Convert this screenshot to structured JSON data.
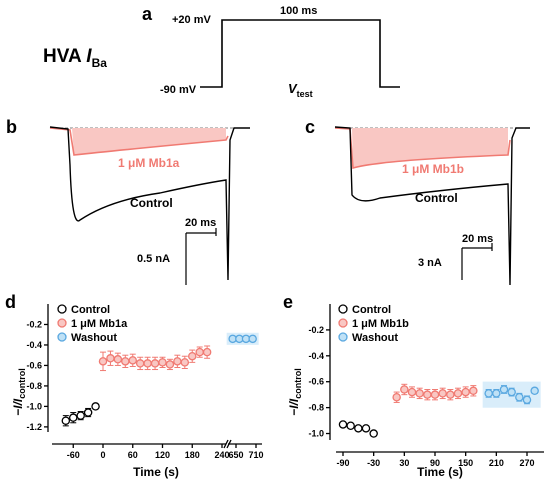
{
  "panels": {
    "a": "a",
    "b": "b",
    "c": "c",
    "d": "d",
    "e": "e"
  },
  "protocol": {
    "title_main": "HVA ",
    "title_I": "I",
    "title_sub": "Ba",
    "v_hold": "-90 mV",
    "v_step": "+20 mV",
    "duration": "100 ms",
    "vtest_V": "V",
    "vtest_sub": "test"
  },
  "traces_b": {
    "drug_label": "1 μM Mb1a",
    "control_label": "Control",
    "scale_time": "20 ms",
    "scale_current": "0.5 nA"
  },
  "traces_c": {
    "drug_label": "1 μM Mb1b",
    "control_label": "Control",
    "scale_time": "20 ms",
    "scale_current": "3 nA"
  },
  "colors": {
    "control": "#000000",
    "drug": "#f07a72",
    "drug_fill": "#f9c7c3",
    "washout": "#5aa8e0",
    "washout_fill": "#bfe1f6"
  },
  "legend_d": [
    "Control",
    "1 μM Mb1a",
    "Washout"
  ],
  "legend_e": [
    "Control",
    "1 μM Mb1b",
    "Washout"
  ],
  "ylabel_d": {
    "main": "−I/I",
    "sub": "control"
  },
  "ylabel_e": {
    "main": "−I/I",
    "sub": "control"
  },
  "xlabel_d": "Time (s)",
  "xlabel_e": "Time (s)",
  "chart_data": [
    {
      "type": "scatter",
      "panel": "d",
      "xlabel": "Time (s)",
      "ylabel": "−I/Icontrol",
      "ylim": [
        -1.25,
        0
      ],
      "y_ticks": [
        "-0.2",
        "-0.4",
        "-0.6",
        "-0.8",
        "-1.0",
        "-1.2"
      ],
      "x_ticks": [
        "-60",
        "0",
        "60",
        "120",
        "180",
        "240",
        "650",
        "710"
      ],
      "axis_break_after": 240,
      "grid": false,
      "legend": "top-left",
      "series": [
        {
          "name": "Control",
          "x": [
            -75,
            -60,
            -45,
            -30,
            -15
          ],
          "y": [
            -1.14,
            -1.11,
            -1.09,
            -1.06,
            -1.0
          ],
          "err": [
            0.05,
            0.05,
            0.04,
            0.04,
            0.0
          ]
        },
        {
          "name": "1 μM Mb1a",
          "x": [
            0,
            15,
            30,
            45,
            60,
            75,
            90,
            105,
            120,
            135,
            150,
            165,
            180,
            195,
            210
          ],
          "y": [
            -0.56,
            -0.53,
            -0.54,
            -0.56,
            -0.55,
            -0.58,
            -0.58,
            -0.58,
            -0.57,
            -0.59,
            -0.56,
            -0.57,
            -0.51,
            -0.47,
            -0.47
          ],
          "err": [
            0.09,
            0.07,
            0.06,
            0.06,
            0.06,
            0.06,
            0.06,
            0.06,
            0.05,
            0.05,
            0.06,
            0.06,
            0.06,
            0.05,
            0.06
          ]
        },
        {
          "name": "Washout",
          "x": [
            640,
            660,
            680,
            700
          ],
          "y": [
            -0.34,
            -0.34,
            -0.34,
            -0.34
          ],
          "err": [
            0.02,
            0.02,
            0.02,
            0.02
          ]
        }
      ]
    },
    {
      "type": "scatter",
      "panel": "e",
      "xlabel": "Time (s)",
      "ylabel": "−I/Icontrol",
      "ylim": [
        -1.05,
        0
      ],
      "y_ticks": [
        "-0.2",
        "-0.4",
        "-0.6",
        "-0.8",
        "-1.0"
      ],
      "x_ticks": [
        "-90",
        "-30",
        "30",
        "90",
        "150",
        "210",
        "270"
      ],
      "grid": false,
      "legend": "top-left",
      "series": [
        {
          "name": "Control",
          "x": [
            -90,
            -75,
            -60,
            -45,
            -30
          ],
          "y": [
            -0.93,
            -0.94,
            -0.96,
            -0.96,
            -1.0
          ],
          "err": [
            0,
            0,
            0,
            0,
            0
          ]
        },
        {
          "name": "1 μM Mb1b",
          "x": [
            15,
            30,
            45,
            60,
            75,
            90,
            105,
            120,
            135,
            150,
            165
          ],
          "y": [
            -0.72,
            -0.66,
            -0.68,
            -0.69,
            -0.7,
            -0.7,
            -0.69,
            -0.7,
            -0.69,
            -0.68,
            -0.67
          ],
          "err": [
            0.04,
            0.04,
            0.04,
            0.04,
            0.04,
            0.04,
            0.04,
            0.04,
            0.04,
            0.04,
            0.04
          ]
        },
        {
          "name": "Washout",
          "x": [
            195,
            210,
            225,
            240,
            255,
            270,
            285
          ],
          "y": [
            -0.69,
            -0.69,
            -0.66,
            -0.68,
            -0.72,
            -0.74,
            -0.67
          ],
          "err": [
            0.03,
            0.03,
            0.03,
            0.03,
            0.03,
            0.03,
            0.02
          ]
        }
      ]
    }
  ]
}
